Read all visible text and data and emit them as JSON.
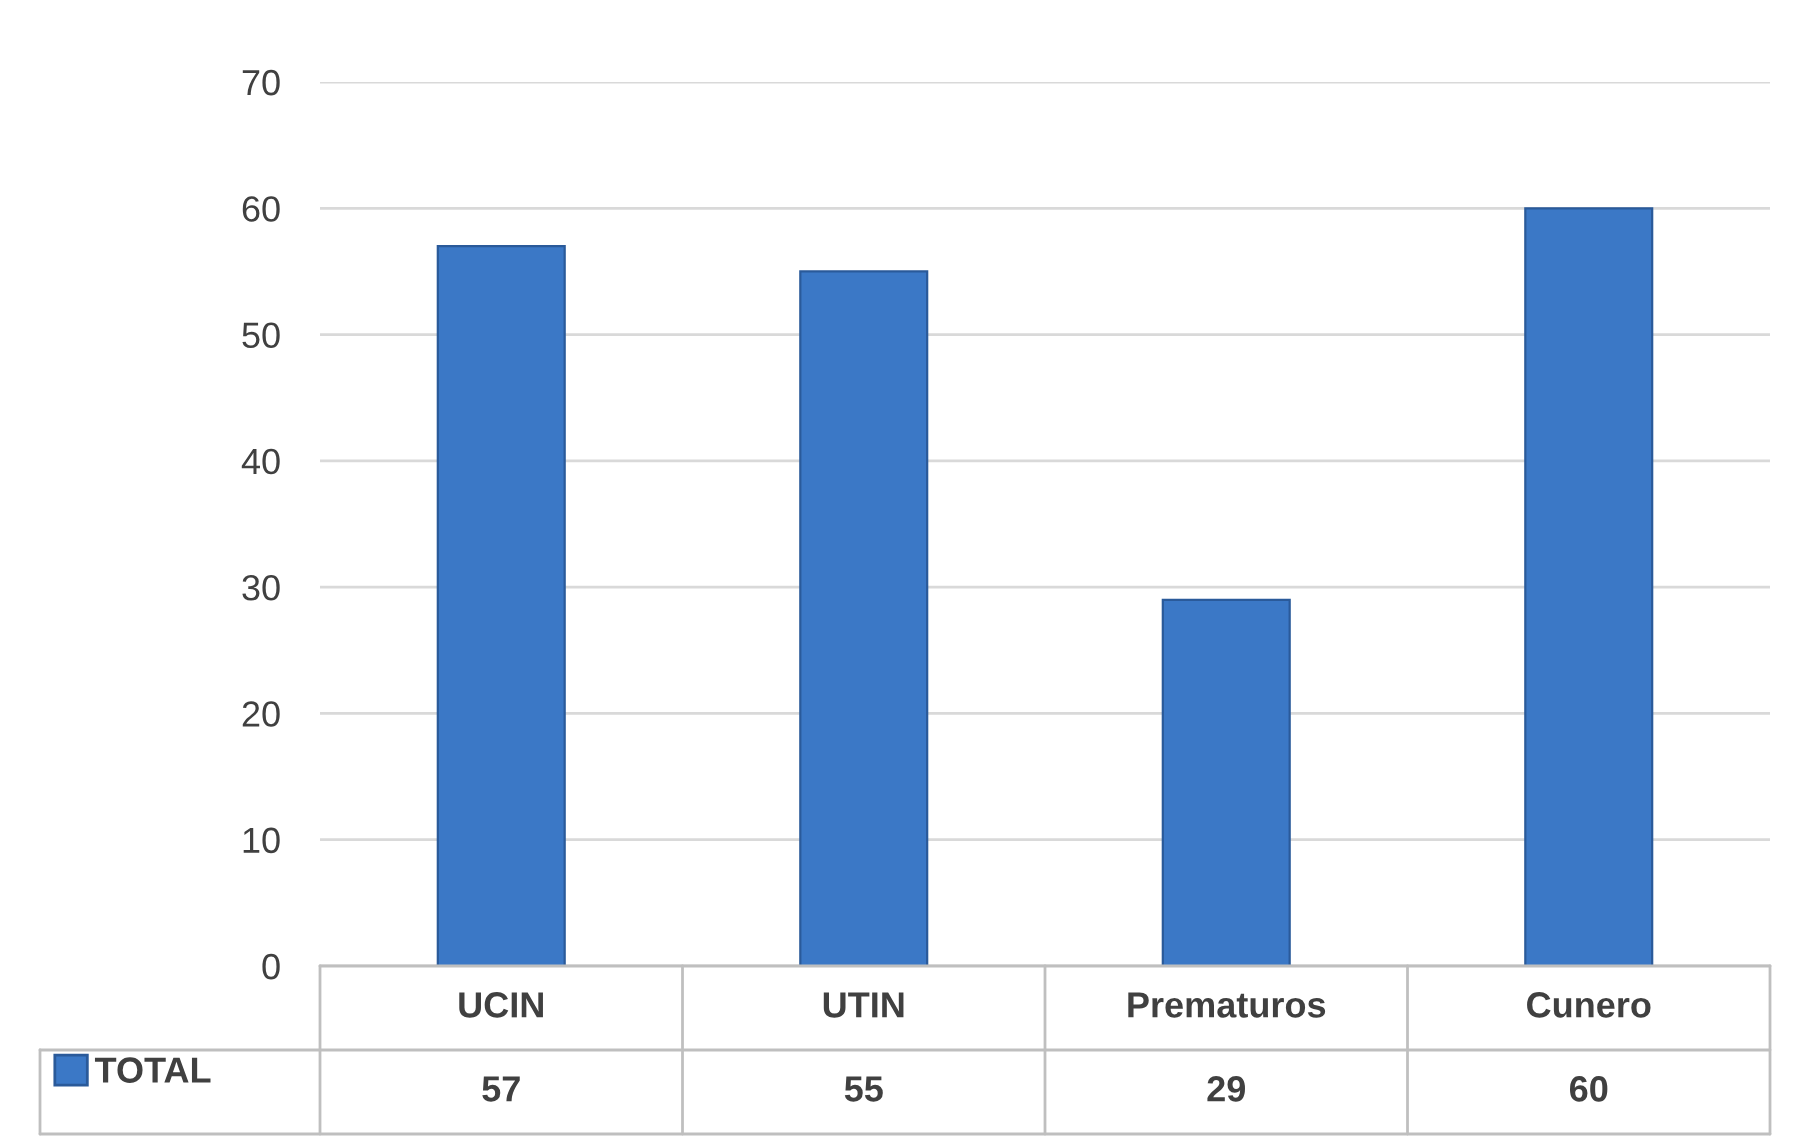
{
  "chart_data": {
    "type": "bar",
    "categories": [
      "UCIN",
      "UTIN",
      "Prematuros",
      "Cunero"
    ],
    "series": [
      {
        "name": "TOTAL",
        "color": "#3b78c6",
        "values": [
          57,
          55,
          29,
          60
        ]
      }
    ],
    "ylim": [
      0,
      70
    ],
    "yticks": [
      0,
      10,
      20,
      30,
      40,
      50,
      60,
      70
    ],
    "grid": "y",
    "data_labels": true,
    "legend": "bottom left"
  }
}
